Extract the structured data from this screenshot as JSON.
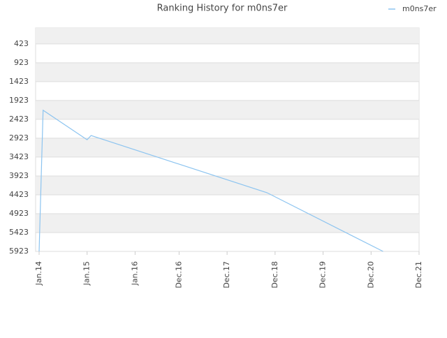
{
  "chart_data": {
    "type": "line",
    "title": "Ranking History for m0ns7er",
    "x": [
      "2014-01",
      "2014-02",
      "2015-01",
      "2015-02",
      "2018-10",
      "2021-03"
    ],
    "series": [
      {
        "name": "m0ns7er",
        "color": "#8cc4f0",
        "values": [
          5923,
          2183,
          2964,
          2853,
          4368,
          5923
        ]
      }
    ],
    "xlim": [
      "2014-01",
      "2021-12"
    ],
    "xticks": [
      {
        "value": "2014-01",
        "label": "Jan.14"
      },
      {
        "value": "2015-01",
        "label": "Jan.15"
      },
      {
        "value": "2016-01",
        "label": "Jan.16"
      },
      {
        "value": "2016-12",
        "label": "Dec.16"
      },
      {
        "value": "2017-12",
        "label": "Dec.17"
      },
      {
        "value": "2018-12",
        "label": "Dec.18"
      },
      {
        "value": "2019-12",
        "label": "Dec.19"
      },
      {
        "value": "2020-12",
        "label": "Dec.20"
      },
      {
        "value": "2021-12",
        "label": "Dec.21"
      }
    ],
    "ylim": [
      5923,
      0
    ],
    "yticks": [
      423,
      923,
      1423,
      1923,
      2423,
      2923,
      3423,
      3923,
      4423,
      4923,
      5423,
      5923
    ],
    "grid": true,
    "legend": "top-right"
  }
}
